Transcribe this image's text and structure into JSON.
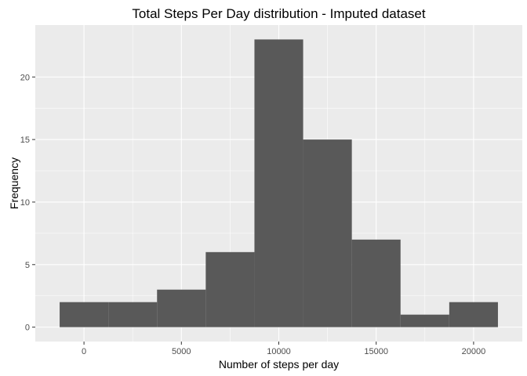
{
  "chart_data": {
    "type": "bar",
    "title": "Total Steps Per Day distribution - Imputed dataset",
    "xlabel": "Number of steps per day",
    "ylabel": "Frequency",
    "bins": [
      {
        "x0": -1250,
        "x1": 1250,
        "count": 2
      },
      {
        "x0": 1250,
        "x1": 3750,
        "count": 2
      },
      {
        "x0": 3750,
        "x1": 6250,
        "count": 3
      },
      {
        "x0": 6250,
        "x1": 8750,
        "count": 6
      },
      {
        "x0": 8750,
        "x1": 11250,
        "count": 23
      },
      {
        "x0": 11250,
        "x1": 13750,
        "count": 15
      },
      {
        "x0": 13750,
        "x1": 16250,
        "count": 7
      },
      {
        "x0": 16250,
        "x1": 18750,
        "count": 1
      },
      {
        "x0": 18750,
        "x1": 21250,
        "count": 2
      }
    ],
    "xlim": [
      -2500,
      22500
    ],
    "ylim": [
      -1.15,
      24.15
    ],
    "x_ticks": [
      0,
      5000,
      10000,
      15000,
      20000
    ],
    "x_tick_labels": [
      "0",
      "5000",
      "10000",
      "15000",
      "20000"
    ],
    "y_ticks": [
      0,
      5,
      10,
      15,
      20
    ],
    "y_tick_labels": [
      "0",
      "5",
      "10",
      "15",
      "20"
    ],
    "grid": true,
    "colors": {
      "panel": "#ebebeb",
      "grid_major": "#ffffff",
      "bar": "#595959",
      "tick": "#333333"
    }
  }
}
